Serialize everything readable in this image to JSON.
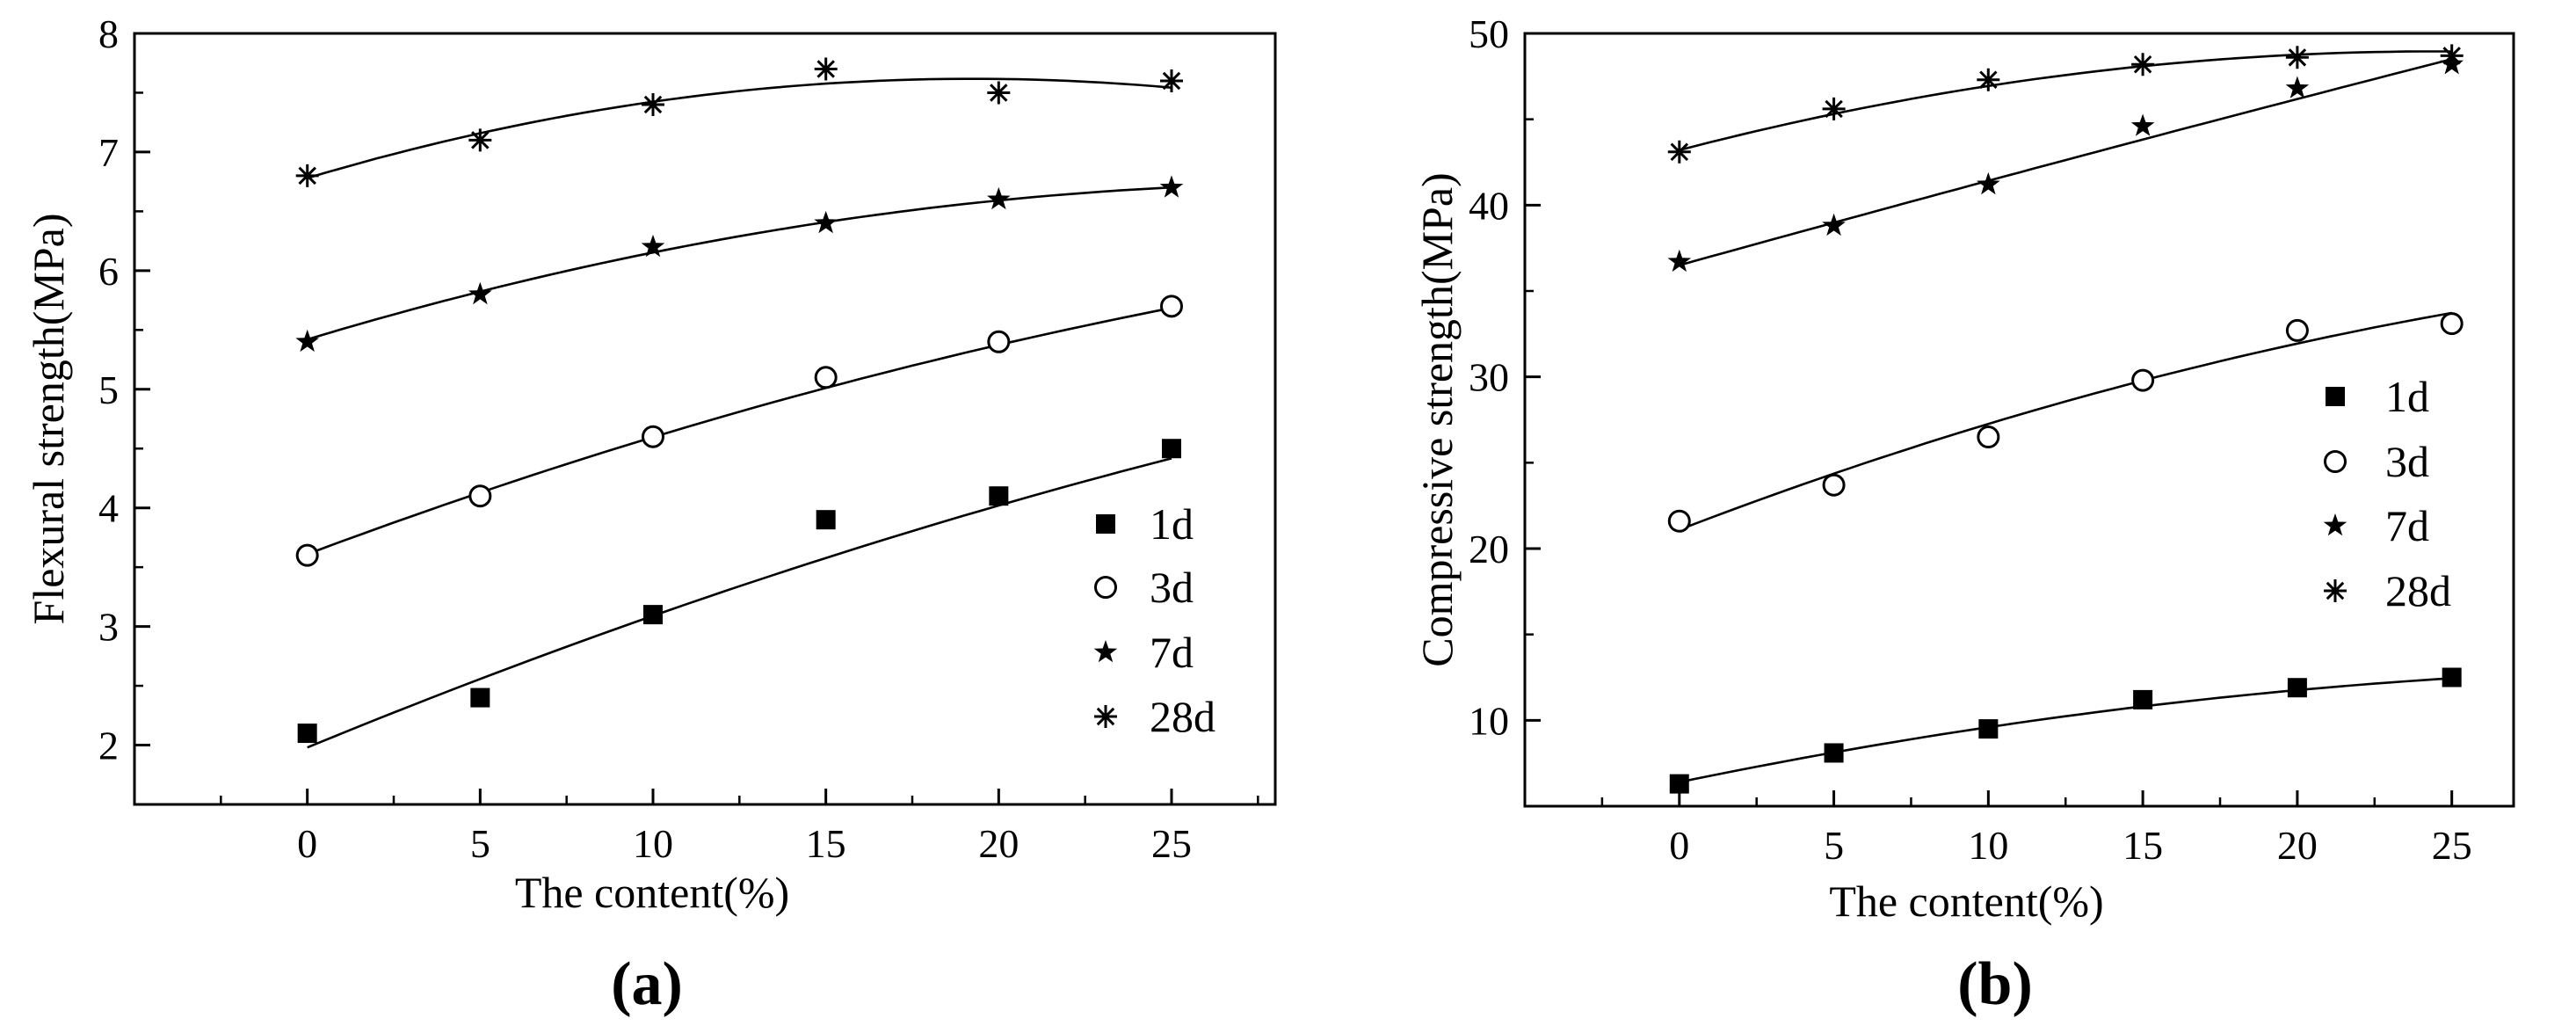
{
  "chart_data": [
    {
      "type": "scatter",
      "panel_label": "(a)",
      "title": "",
      "xlabel": "The content(%)",
      "ylabel": "Flexural strength(MPa)",
      "xlim": [
        -5,
        28
      ],
      "ylim": [
        1.5,
        8
      ],
      "xticks": [
        0,
        5,
        10,
        15,
        20,
        25
      ],
      "xtick_labels": [
        "0",
        "5",
        "10",
        "15",
        "20",
        "25"
      ],
      "yticks": [
        2,
        3,
        4,
        5,
        6,
        7,
        8
      ],
      "ytick_labels": [
        "2",
        "3",
        "4",
        "5",
        "6",
        "7",
        "8"
      ],
      "grid": false,
      "legend_position": "bottom-right",
      "x": [
        0,
        5,
        10,
        15,
        20,
        25
      ],
      "series": [
        {
          "name": "1d",
          "marker": "filled-square",
          "values": [
            2.1,
            2.4,
            3.1,
            3.9,
            4.1,
            4.5
          ],
          "fit": [
            1.98,
            0.12,
            -0.0009
          ]
        },
        {
          "name": "3d",
          "marker": "open-circle",
          "values": [
            3.6,
            4.1,
            4.6,
            5.1,
            5.4,
            5.7
          ],
          "fit": [
            3.61,
            0.109,
            -0.00104
          ]
        },
        {
          "name": "7d",
          "marker": "filled-star",
          "values": [
            5.4,
            5.8,
            6.2,
            6.4,
            6.6,
            6.7
          ],
          "fit": [
            5.42,
            0.088,
            -0.00147
          ]
        },
        {
          "name": "28d",
          "marker": "asterisk",
          "values": [
            6.8,
            7.1,
            7.4,
            7.7,
            7.5,
            7.6
          ],
          "fit": [
            6.78,
            0.087,
            -0.00226
          ]
        }
      ]
    },
    {
      "type": "scatter",
      "panel_label": "(b)",
      "title": "",
      "xlabel": "The content(%)",
      "ylabel": "Compressive strength(MPa)",
      "xlim": [
        -5,
        27
      ],
      "ylim": [
        5,
        50
      ],
      "xticks": [
        0,
        5,
        10,
        15,
        20,
        25
      ],
      "xtick_labels": [
        "0",
        "5",
        "10",
        "15",
        "20",
        "25"
      ],
      "yticks": [
        10,
        20,
        30,
        40,
        50
      ],
      "ytick_labels": [
        "10",
        "20",
        "30",
        "40",
        "50"
      ],
      "grid": false,
      "legend_position": "middle-right",
      "x": [
        0,
        5,
        10,
        15,
        20,
        25
      ],
      "series": [
        {
          "name": "1d",
          "marker": "filled-square",
          "values": [
            6.3,
            8.1,
            9.5,
            11.2,
            11.9,
            12.5
          ],
          "fit": [
            6.4,
            0.372,
            -0.0052
          ]
        },
        {
          "name": "3d",
          "marker": "open-circle",
          "values": [
            21.6,
            23.7,
            26.5,
            29.8,
            32.7,
            33.1
          ],
          "fit": [
            21.1,
            0.69,
            -0.0074
          ]
        },
        {
          "name": "7d",
          "marker": "filled-star",
          "values": [
            36.7,
            38.8,
            41.2,
            44.6,
            46.8,
            48.2
          ],
          "fit": [
            36.5,
            0.5,
            -0.0008
          ]
        },
        {
          "name": "28d",
          "marker": "asterisk",
          "values": [
            43.1,
            45.6,
            47.3,
            48.2,
            48.6,
            48.7
          ],
          "fit": [
            43.2,
            0.47,
            -0.0096
          ]
        }
      ]
    }
  ]
}
